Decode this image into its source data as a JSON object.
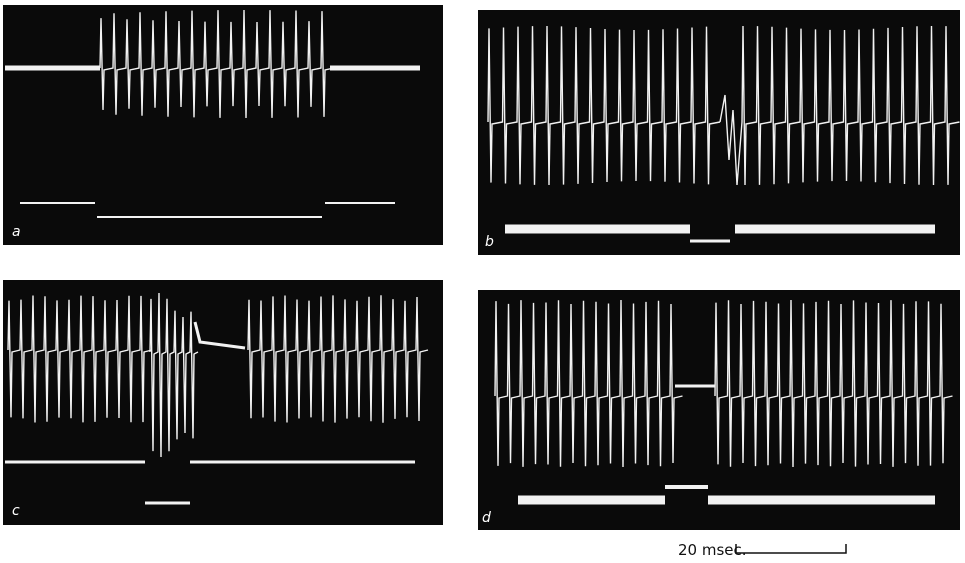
{
  "panels": [
    {
      "label": "a"
    },
    {
      "label": "b"
    },
    {
      "label": "c"
    },
    {
      "label": "d"
    }
  ],
  "scale_bar": {
    "label": "20 msec."
  }
}
